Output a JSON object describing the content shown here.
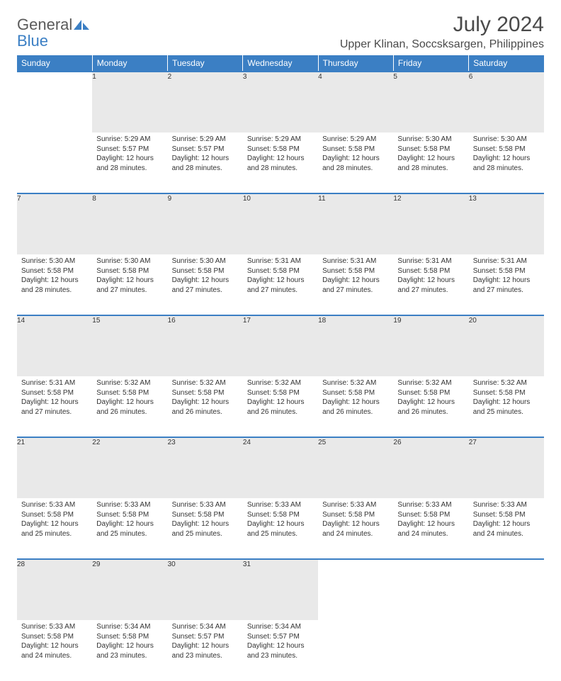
{
  "brand": {
    "name1": "General",
    "name2": "Blue"
  },
  "title": "July 2024",
  "location": "Upper Klinan, Soccsksargen, Philippines",
  "colors": {
    "header_bg": "#3b7fc4",
    "header_text": "#ffffff",
    "daynum_bg": "#e9e9e9",
    "row_divider": "#3b7fc4",
    "text": "#333333",
    "background": "#ffffff"
  },
  "calendar": {
    "day_headers": [
      "Sunday",
      "Monday",
      "Tuesday",
      "Wednesday",
      "Thursday",
      "Friday",
      "Saturday"
    ],
    "first_weekday": 1,
    "num_days": 31,
    "weeks": [
      [
        null,
        {
          "n": 1,
          "sunrise": "5:29 AM",
          "sunset": "5:57 PM",
          "daylight": "12 hours and 28 minutes."
        },
        {
          "n": 2,
          "sunrise": "5:29 AM",
          "sunset": "5:57 PM",
          "daylight": "12 hours and 28 minutes."
        },
        {
          "n": 3,
          "sunrise": "5:29 AM",
          "sunset": "5:58 PM",
          "daylight": "12 hours and 28 minutes."
        },
        {
          "n": 4,
          "sunrise": "5:29 AM",
          "sunset": "5:58 PM",
          "daylight": "12 hours and 28 minutes."
        },
        {
          "n": 5,
          "sunrise": "5:30 AM",
          "sunset": "5:58 PM",
          "daylight": "12 hours and 28 minutes."
        },
        {
          "n": 6,
          "sunrise": "5:30 AM",
          "sunset": "5:58 PM",
          "daylight": "12 hours and 28 minutes."
        }
      ],
      [
        {
          "n": 7,
          "sunrise": "5:30 AM",
          "sunset": "5:58 PM",
          "daylight": "12 hours and 28 minutes."
        },
        {
          "n": 8,
          "sunrise": "5:30 AM",
          "sunset": "5:58 PM",
          "daylight": "12 hours and 27 minutes."
        },
        {
          "n": 9,
          "sunrise": "5:30 AM",
          "sunset": "5:58 PM",
          "daylight": "12 hours and 27 minutes."
        },
        {
          "n": 10,
          "sunrise": "5:31 AM",
          "sunset": "5:58 PM",
          "daylight": "12 hours and 27 minutes."
        },
        {
          "n": 11,
          "sunrise": "5:31 AM",
          "sunset": "5:58 PM",
          "daylight": "12 hours and 27 minutes."
        },
        {
          "n": 12,
          "sunrise": "5:31 AM",
          "sunset": "5:58 PM",
          "daylight": "12 hours and 27 minutes."
        },
        {
          "n": 13,
          "sunrise": "5:31 AM",
          "sunset": "5:58 PM",
          "daylight": "12 hours and 27 minutes."
        }
      ],
      [
        {
          "n": 14,
          "sunrise": "5:31 AM",
          "sunset": "5:58 PM",
          "daylight": "12 hours and 27 minutes."
        },
        {
          "n": 15,
          "sunrise": "5:32 AM",
          "sunset": "5:58 PM",
          "daylight": "12 hours and 26 minutes."
        },
        {
          "n": 16,
          "sunrise": "5:32 AM",
          "sunset": "5:58 PM",
          "daylight": "12 hours and 26 minutes."
        },
        {
          "n": 17,
          "sunrise": "5:32 AM",
          "sunset": "5:58 PM",
          "daylight": "12 hours and 26 minutes."
        },
        {
          "n": 18,
          "sunrise": "5:32 AM",
          "sunset": "5:58 PM",
          "daylight": "12 hours and 26 minutes."
        },
        {
          "n": 19,
          "sunrise": "5:32 AM",
          "sunset": "5:58 PM",
          "daylight": "12 hours and 26 minutes."
        },
        {
          "n": 20,
          "sunrise": "5:32 AM",
          "sunset": "5:58 PM",
          "daylight": "12 hours and 25 minutes."
        }
      ],
      [
        {
          "n": 21,
          "sunrise": "5:33 AM",
          "sunset": "5:58 PM",
          "daylight": "12 hours and 25 minutes."
        },
        {
          "n": 22,
          "sunrise": "5:33 AM",
          "sunset": "5:58 PM",
          "daylight": "12 hours and 25 minutes."
        },
        {
          "n": 23,
          "sunrise": "5:33 AM",
          "sunset": "5:58 PM",
          "daylight": "12 hours and 25 minutes."
        },
        {
          "n": 24,
          "sunrise": "5:33 AM",
          "sunset": "5:58 PM",
          "daylight": "12 hours and 25 minutes."
        },
        {
          "n": 25,
          "sunrise": "5:33 AM",
          "sunset": "5:58 PM",
          "daylight": "12 hours and 24 minutes."
        },
        {
          "n": 26,
          "sunrise": "5:33 AM",
          "sunset": "5:58 PM",
          "daylight": "12 hours and 24 minutes."
        },
        {
          "n": 27,
          "sunrise": "5:33 AM",
          "sunset": "5:58 PM",
          "daylight": "12 hours and 24 minutes."
        }
      ],
      [
        {
          "n": 28,
          "sunrise": "5:33 AM",
          "sunset": "5:58 PM",
          "daylight": "12 hours and 24 minutes."
        },
        {
          "n": 29,
          "sunrise": "5:34 AM",
          "sunset": "5:58 PM",
          "daylight": "12 hours and 23 minutes."
        },
        {
          "n": 30,
          "sunrise": "5:34 AM",
          "sunset": "5:57 PM",
          "daylight": "12 hours and 23 minutes."
        },
        {
          "n": 31,
          "sunrise": "5:34 AM",
          "sunset": "5:57 PM",
          "daylight": "12 hours and 23 minutes."
        },
        null,
        null,
        null
      ]
    ],
    "labels": {
      "sunrise": "Sunrise:",
      "sunset": "Sunset:",
      "daylight": "Daylight:"
    }
  }
}
